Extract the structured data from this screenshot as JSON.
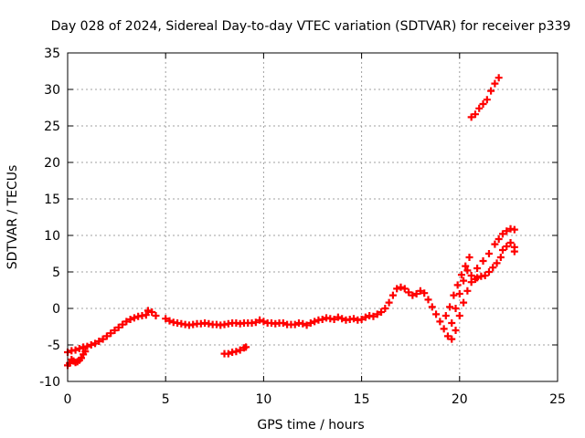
{
  "chart_data": {
    "type": "scatter",
    "title": "Day 028 of 2024, Sidereal Day-to-day VTEC variation (SDTVAR) for receiver p339",
    "xlabel": "GPS time / hours",
    "ylabel": "SDTVAR / TECUs",
    "xlim": [
      0,
      25
    ],
    "ylim": [
      -10,
      35
    ],
    "xticks": [
      0,
      5,
      10,
      15,
      20,
      25
    ],
    "yticks": [
      -10,
      -5,
      0,
      5,
      10,
      15,
      20,
      25,
      30,
      35
    ],
    "grid": true,
    "marker": "+",
    "color": "#ff0000",
    "series": [
      {
        "values": [
          [
            0.0,
            -7.8
          ],
          [
            0.1,
            -7.5
          ],
          [
            0.2,
            -7.0
          ],
          [
            0.3,
            -7.2
          ],
          [
            0.4,
            -7.4
          ],
          [
            0.5,
            -7.3
          ],
          [
            0.6,
            -7.1
          ],
          [
            0.7,
            -6.8
          ],
          [
            0.8,
            -6.3
          ],
          [
            0.9,
            -5.9
          ],
          [
            0.0,
            -6.0
          ],
          [
            0.2,
            -5.8
          ],
          [
            0.4,
            -5.7
          ],
          [
            0.6,
            -5.5
          ],
          [
            0.8,
            -5.3
          ],
          [
            1.0,
            -5.2
          ],
          [
            1.2,
            -5.0
          ],
          [
            1.4,
            -4.8
          ],
          [
            1.6,
            -4.5
          ],
          [
            1.8,
            -4.2
          ],
          [
            2.0,
            -3.8
          ],
          [
            2.2,
            -3.4
          ],
          [
            2.4,
            -3.0
          ],
          [
            2.6,
            -2.6
          ],
          [
            2.8,
            -2.2
          ],
          [
            3.0,
            -1.8
          ],
          [
            3.2,
            -1.5
          ],
          [
            3.4,
            -1.3
          ],
          [
            3.6,
            -1.1
          ],
          [
            3.8,
            -1.0
          ],
          [
            4.0,
            -0.9
          ],
          [
            4.1,
            -0.3
          ],
          [
            4.3,
            -0.5
          ],
          [
            4.5,
            -1.0
          ],
          [
            5.0,
            -1.4
          ],
          [
            5.2,
            -1.7
          ],
          [
            5.4,
            -1.9
          ],
          [
            5.6,
            -2.0
          ],
          [
            5.8,
            -2.1
          ],
          [
            6.0,
            -2.2
          ],
          [
            6.2,
            -2.3
          ],
          [
            6.4,
            -2.2
          ],
          [
            6.6,
            -2.1
          ],
          [
            6.8,
            -2.1
          ],
          [
            7.0,
            -2.0
          ],
          [
            7.2,
            -2.1
          ],
          [
            7.4,
            -2.2
          ],
          [
            7.6,
            -2.2
          ],
          [
            7.8,
            -2.3
          ],
          [
            8.0,
            -2.2
          ],
          [
            8.2,
            -2.1
          ],
          [
            8.4,
            -2.0
          ],
          [
            8.6,
            -2.0
          ],
          [
            8.8,
            -2.1
          ],
          [
            9.0,
            -2.0
          ],
          [
            9.2,
            -2.0
          ],
          [
            9.4,
            -2.0
          ],
          [
            9.6,
            -1.9
          ],
          [
            9.8,
            -1.6
          ],
          [
            10.0,
            -1.8
          ],
          [
            10.2,
            -2.0
          ],
          [
            10.4,
            -2.0
          ],
          [
            10.6,
            -2.1
          ],
          [
            10.8,
            -2.0
          ],
          [
            11.0,
            -2.0
          ],
          [
            11.2,
            -2.2
          ],
          [
            11.4,
            -2.2
          ],
          [
            11.6,
            -2.2
          ],
          [
            11.8,
            -2.0
          ],
          [
            12.0,
            -2.1
          ],
          [
            12.2,
            -2.3
          ],
          [
            12.4,
            -2.0
          ],
          [
            12.6,
            -1.8
          ],
          [
            12.8,
            -1.6
          ],
          [
            13.0,
            -1.5
          ],
          [
            13.2,
            -1.3
          ],
          [
            13.4,
            -1.4
          ],
          [
            13.6,
            -1.5
          ],
          [
            13.8,
            -1.2
          ],
          [
            14.0,
            -1.4
          ],
          [
            14.2,
            -1.6
          ],
          [
            14.4,
            -1.5
          ],
          [
            14.6,
            -1.4
          ],
          [
            14.8,
            -1.6
          ],
          [
            15.0,
            -1.5
          ],
          [
            15.2,
            -1.2
          ],
          [
            15.4,
            -1.0
          ],
          [
            15.6,
            -1.1
          ],
          [
            15.8,
            -0.8
          ],
          [
            16.0,
            -0.5
          ],
          [
            16.2,
            0.0
          ],
          [
            16.4,
            0.8
          ],
          [
            16.6,
            1.8
          ],
          [
            16.8,
            2.7
          ],
          [
            17.0,
            2.9
          ],
          [
            17.2,
            2.7
          ],
          [
            17.4,
            2.2
          ],
          [
            17.6,
            1.8
          ],
          [
            17.8,
            2.0
          ],
          [
            18.0,
            2.4
          ],
          [
            18.2,
            2.1
          ],
          [
            18.4,
            1.2
          ],
          [
            18.6,
            0.2
          ],
          [
            18.8,
            -0.8
          ],
          [
            19.0,
            -1.8
          ],
          [
            19.2,
            -2.8
          ],
          [
            19.4,
            -3.8
          ],
          [
            19.6,
            -4.2
          ],
          [
            19.8,
            -3.0
          ],
          [
            20.0,
            -1.0
          ],
          [
            20.2,
            0.8
          ],
          [
            20.4,
            2.4
          ],
          [
            20.6,
            3.6
          ],
          [
            20.8,
            4.0
          ],
          [
            19.3,
            -1.0
          ],
          [
            19.5,
            0.2
          ],
          [
            19.7,
            1.8
          ],
          [
            19.9,
            3.2
          ],
          [
            20.1,
            4.6
          ],
          [
            20.3,
            5.8
          ],
          [
            20.5,
            7.0
          ],
          [
            19.6,
            -2.0
          ],
          [
            19.8,
            0.0
          ],
          [
            20.0,
            2.0
          ],
          [
            20.2,
            3.8
          ],
          [
            20.4,
            5.2
          ],
          [
            20.9,
            4.2
          ],
          [
            21.1,
            4.4
          ],
          [
            21.3,
            4.5
          ],
          [
            21.5,
            5.0
          ],
          [
            21.7,
            5.6
          ],
          [
            21.9,
            6.2
          ],
          [
            22.1,
            7.0
          ],
          [
            20.6,
            4.5
          ],
          [
            20.9,
            5.5
          ],
          [
            21.2,
            6.5
          ],
          [
            21.5,
            7.5
          ],
          [
            21.8,
            8.8
          ],
          [
            22.0,
            9.5
          ],
          [
            22.2,
            10.2
          ],
          [
            22.4,
            10.6
          ],
          [
            22.6,
            10.9
          ],
          [
            22.8,
            10.8
          ],
          [
            22.2,
            8.0
          ],
          [
            22.4,
            8.5
          ],
          [
            22.6,
            9.0
          ],
          [
            22.8,
            8.4
          ],
          [
            22.8,
            7.8
          ],
          [
            8.0,
            -6.2
          ],
          [
            8.2,
            -6.2
          ],
          [
            8.4,
            -6.0
          ],
          [
            8.6,
            -5.9
          ],
          [
            8.8,
            -5.7
          ],
          [
            9.0,
            -5.4
          ],
          [
            9.1,
            -5.3
          ],
          [
            20.6,
            26.2
          ],
          [
            20.8,
            26.6
          ],
          [
            21.0,
            27.4
          ],
          [
            21.2,
            28.0
          ],
          [
            21.4,
            28.6
          ],
          [
            21.6,
            29.8
          ],
          [
            21.8,
            30.8
          ],
          [
            22.0,
            31.6
          ]
        ]
      }
    ]
  }
}
